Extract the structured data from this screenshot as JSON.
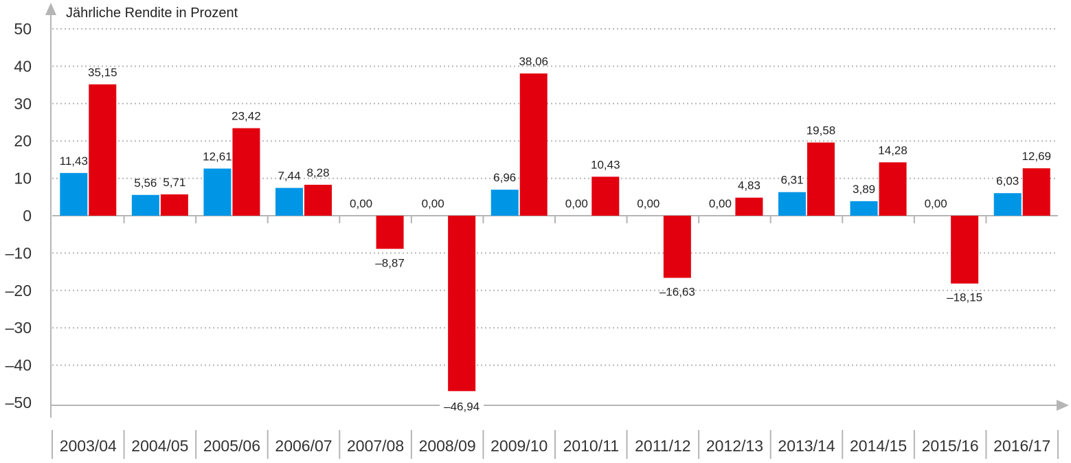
{
  "chart_data": {
    "type": "bar",
    "title": "Jährliche Rendite in Prozent",
    "categories": [
      "2003/04",
      "2004/05",
      "2005/06",
      "2006/07",
      "2007/08",
      "2008/09",
      "2009/10",
      "2010/11",
      "2011/12",
      "2012/13",
      "2013/14",
      "2014/15",
      "2015/16",
      "2016/17"
    ],
    "series": [
      {
        "values": [
          11.43,
          5.56,
          12.61,
          7.44,
          0.0,
          0.0,
          6.96,
          0.0,
          0.0,
          0.0,
          6.31,
          3.89,
          0.0,
          6.03
        ],
        "labels": [
          "11,43",
          "5,56",
          "12,61",
          "7,44",
          "0,00",
          "0,00",
          "6,96",
          "0,00",
          "0,00",
          "0,00",
          "6,31",
          "3,89",
          "0,00",
          "6,03"
        ],
        "color": "#0096e6"
      },
      {
        "values": [
          35.15,
          5.71,
          23.42,
          8.28,
          -8.87,
          -46.94,
          38.06,
          10.43,
          -16.63,
          4.83,
          19.58,
          14.28,
          -18.15,
          12.69
        ],
        "labels": [
          "35,15",
          "5,71",
          "23,42",
          "8,28",
          "–8,87",
          "–46,94",
          "38,06",
          "10,43",
          "–16,63",
          "4,83",
          "19,58",
          "14,28",
          "–18,15",
          "12,69"
        ],
        "color": "#e2000f"
      }
    ],
    "yticks": [
      50,
      40,
      30,
      20,
      10,
      0,
      -10,
      -20,
      -30,
      -40,
      -50
    ],
    "ytick_labels": [
      "50",
      "40",
      "30",
      "20",
      "10",
      "0",
      "–10",
      "–20",
      "–30",
      "–40",
      "–50"
    ],
    "ylim": [
      -50,
      50
    ],
    "grid": true,
    "legend": "none"
  }
}
